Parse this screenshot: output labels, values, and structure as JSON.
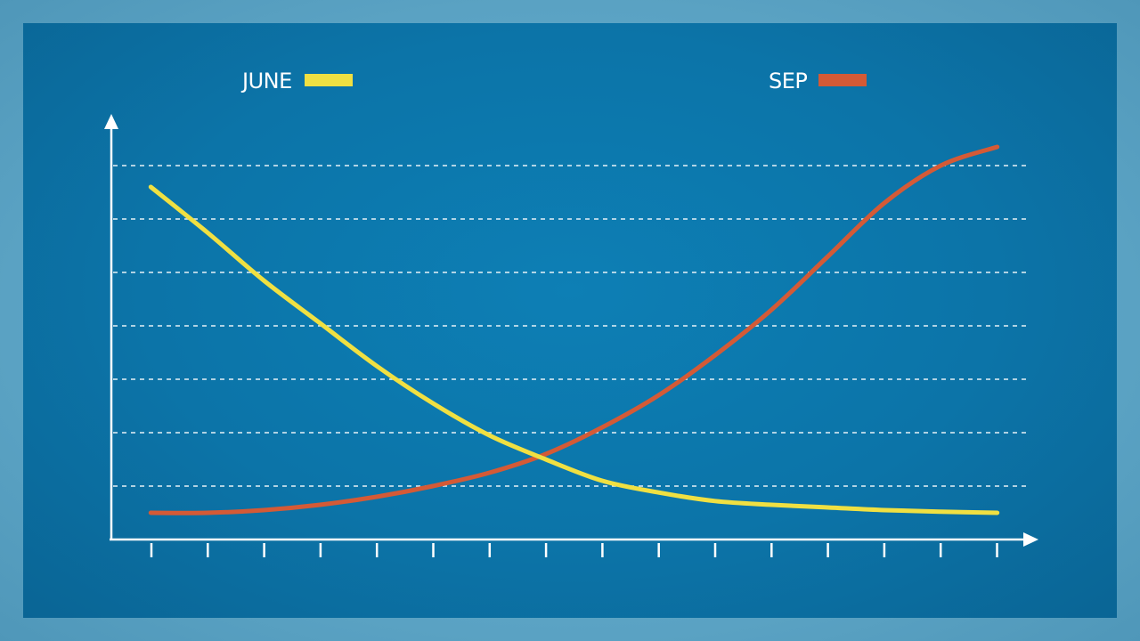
{
  "chart_data": {
    "type": "line",
    "title": "",
    "xlabel": "",
    "ylabel": "",
    "x": [
      1,
      2,
      3,
      4,
      5,
      6,
      7,
      8,
      9,
      10,
      11,
      12,
      13,
      14,
      15,
      16
    ],
    "xlim": [
      0.3,
      16.4
    ],
    "ylim": [
      0,
      7.8
    ],
    "grid": true,
    "grid_lines": [
      1,
      2,
      3,
      4,
      5,
      6,
      7
    ],
    "legend_position": "top",
    "series": [
      {
        "name": "JUNE",
        "color": "#f0e042",
        "values": [
          6.6,
          5.75,
          4.85,
          4.05,
          3.25,
          2.55,
          1.95,
          1.5,
          1.1,
          0.88,
          0.72,
          0.65,
          0.6,
          0.55,
          0.52,
          0.5
        ]
      },
      {
        "name": "SEP",
        "color": "#d45a36",
        "values": [
          0.5,
          0.5,
          0.55,
          0.65,
          0.8,
          1.0,
          1.25,
          1.6,
          2.1,
          2.7,
          3.45,
          4.3,
          5.3,
          6.3,
          7.0,
          7.35
        ]
      }
    ]
  }
}
